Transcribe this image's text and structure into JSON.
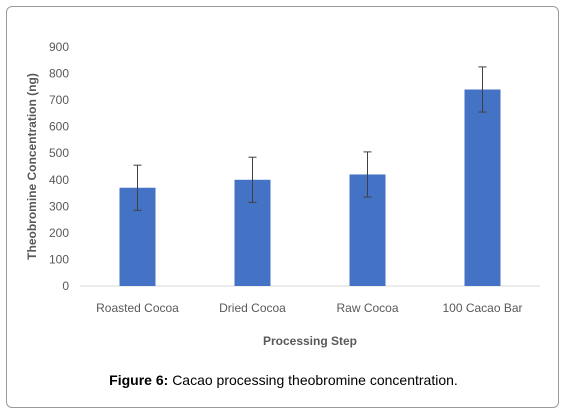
{
  "figure": {
    "label": "Figure 6:",
    "caption": "Cacao processing theobromine concentration."
  },
  "chart_data": {
    "type": "bar",
    "categories": [
      "Roasted Cocoa",
      "Dried Cocoa",
      "Raw Cocoa",
      "100 Cacao Bar"
    ],
    "values": [
      370,
      400,
      420,
      740
    ],
    "error": [
      85,
      85,
      85,
      85
    ],
    "xlabel": "Processing Step",
    "ylabel": "Theobromine Concentration (ng)",
    "ylim": [
      0,
      900
    ],
    "yticks": [
      0,
      100,
      200,
      300,
      400,
      500,
      600,
      700,
      800,
      900
    ],
    "grid": false,
    "bar_color": "#4472c4"
  }
}
